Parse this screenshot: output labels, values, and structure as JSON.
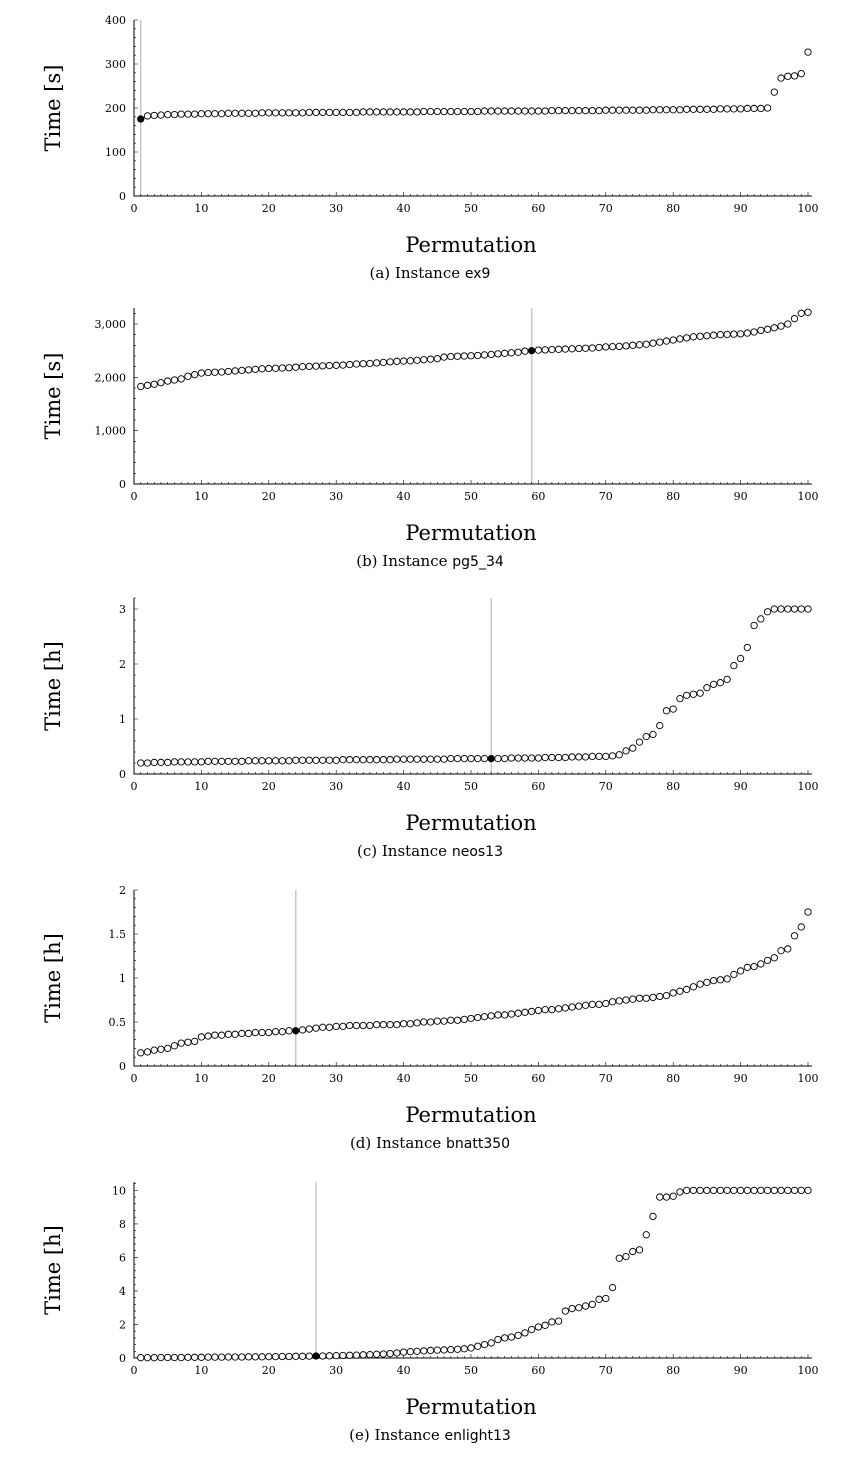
{
  "chart_data": [
    {
      "type": "scatter",
      "xlabel": "Permutation",
      "ylabel": "Time [s]",
      "caption_prefix": "(a) Instance",
      "caption_instance": "ex9",
      "xlim": [
        0,
        100
      ],
      "ylim": [
        0,
        400
      ],
      "xticks": [
        0,
        10,
        20,
        30,
        40,
        50,
        60,
        70,
        80,
        90,
        100
      ],
      "yticks": [
        0,
        100,
        200,
        300,
        400
      ],
      "ytick_labels": [
        "0",
        "100",
        "200",
        "300",
        "400"
      ],
      "highlight_x": 1,
      "x": [
        1,
        2,
        3,
        4,
        5,
        6,
        7,
        8,
        9,
        10,
        11,
        12,
        13,
        14,
        15,
        16,
        17,
        18,
        19,
        20,
        21,
        22,
        23,
        24,
        25,
        26,
        27,
        28,
        29,
        30,
        31,
        32,
        33,
        34,
        35,
        36,
        37,
        38,
        39,
        40,
        41,
        42,
        43,
        44,
        45,
        46,
        47,
        48,
        49,
        50,
        51,
        52,
        53,
        54,
        55,
        56,
        57,
        58,
        59,
        60,
        61,
        62,
        63,
        64,
        65,
        66,
        67,
        68,
        69,
        70,
        71,
        72,
        73,
        74,
        75,
        76,
        77,
        78,
        79,
        80,
        81,
        82,
        83,
        84,
        85,
        86,
        87,
        88,
        89,
        90,
        91,
        92,
        93,
        94,
        95,
        96,
        97,
        98,
        99,
        100
      ],
      "y": [
        175,
        182,
        183,
        184,
        185,
        185,
        186,
        186,
        186,
        187,
        187,
        187,
        187,
        188,
        188,
        188,
        188,
        188,
        189,
        189,
        189,
        189,
        189,
        189,
        189,
        190,
        190,
        190,
        190,
        190,
        190,
        190,
        190,
        191,
        191,
        191,
        191,
        191,
        191,
        191,
        191,
        191,
        192,
        192,
        192,
        192,
        192,
        192,
        192,
        192,
        192,
        193,
        193,
        193,
        193,
        193,
        193,
        193,
        193,
        193,
        193,
        194,
        194,
        194,
        194,
        194,
        194,
        194,
        194,
        195,
        195,
        195,
        195,
        195,
        195,
        195,
        196,
        196,
        196,
        196,
        196,
        197,
        197,
        197,
        197,
        197,
        198,
        198,
        198,
        198,
        199,
        199,
        199,
        200,
        236,
        268,
        272,
        273,
        278,
        327
      ]
    },
    {
      "type": "scatter",
      "xlabel": "Permutation",
      "ylabel": "Time [s]",
      "caption_prefix": "(b) Instance",
      "caption_instance": "pg5_34",
      "xlim": [
        0,
        100
      ],
      "ylim": [
        0,
        3300
      ],
      "xticks": [
        0,
        10,
        20,
        30,
        40,
        50,
        60,
        70,
        80,
        90,
        100
      ],
      "yticks": [
        0,
        1000,
        2000,
        3000
      ],
      "ytick_labels": [
        "0",
        "1,000",
        "2,000",
        "3,000"
      ],
      "highlight_x": 59,
      "x": [
        1,
        2,
        3,
        4,
        5,
        6,
        7,
        8,
        9,
        10,
        11,
        12,
        13,
        14,
        15,
        16,
        17,
        18,
        19,
        20,
        21,
        22,
        23,
        24,
        25,
        26,
        27,
        28,
        29,
        30,
        31,
        32,
        33,
        34,
        35,
        36,
        37,
        38,
        39,
        40,
        41,
        42,
        43,
        44,
        45,
        46,
        47,
        48,
        49,
        50,
        51,
        52,
        53,
        54,
        55,
        56,
        57,
        58,
        59,
        60,
        61,
        62,
        63,
        64,
        65,
        66,
        67,
        68,
        69,
        70,
        71,
        72,
        73,
        74,
        75,
        76,
        77,
        78,
        79,
        80,
        81,
        82,
        83,
        84,
        85,
        86,
        87,
        88,
        89,
        90,
        91,
        92,
        93,
        94,
        95,
        96,
        97,
        98,
        99,
        100
      ],
      "y": [
        1830,
        1850,
        1870,
        1900,
        1930,
        1950,
        1970,
        2020,
        2050,
        2080,
        2090,
        2095,
        2100,
        2110,
        2120,
        2130,
        2140,
        2150,
        2160,
        2165,
        2170,
        2175,
        2180,
        2190,
        2200,
        2205,
        2210,
        2215,
        2220,
        2225,
        2230,
        2240,
        2250,
        2255,
        2260,
        2270,
        2280,
        2290,
        2300,
        2305,
        2310,
        2320,
        2330,
        2340,
        2350,
        2380,
        2390,
        2395,
        2400,
        2405,
        2410,
        2420,
        2430,
        2440,
        2450,
        2460,
        2470,
        2490,
        2500,
        2510,
        2515,
        2520,
        2525,
        2530,
        2535,
        2540,
        2545,
        2550,
        2560,
        2570,
        2575,
        2580,
        2590,
        2600,
        2610,
        2620,
        2640,
        2660,
        2680,
        2700,
        2720,
        2740,
        2760,
        2770,
        2780,
        2790,
        2800,
        2805,
        2810,
        2815,
        2830,
        2850,
        2880,
        2900,
        2930,
        2960,
        3000,
        3100,
        3200,
        3220
      ]
    },
    {
      "type": "scatter",
      "xlabel": "Permutation",
      "ylabel": "Time [h]",
      "caption_prefix": "(c) Instance",
      "caption_instance": "neos13",
      "xlim": [
        0,
        100
      ],
      "ylim": [
        0,
        3.2
      ],
      "xticks": [
        0,
        10,
        20,
        30,
        40,
        50,
        60,
        70,
        80,
        90,
        100
      ],
      "yticks": [
        0,
        1,
        2,
        3
      ],
      "ytick_labels": [
        "0",
        "1",
        "2",
        "3"
      ],
      "highlight_x": 53,
      "x": [
        1,
        2,
        3,
        4,
        5,
        6,
        7,
        8,
        9,
        10,
        11,
        12,
        13,
        14,
        15,
        16,
        17,
        18,
        19,
        20,
        21,
        22,
        23,
        24,
        25,
        26,
        27,
        28,
        29,
        30,
        31,
        32,
        33,
        34,
        35,
        36,
        37,
        38,
        39,
        40,
        41,
        42,
        43,
        44,
        45,
        46,
        47,
        48,
        49,
        50,
        51,
        52,
        53,
        54,
        55,
        56,
        57,
        58,
        59,
        60,
        61,
        62,
        63,
        64,
        65,
        66,
        67,
        68,
        69,
        70,
        71,
        72,
        73,
        74,
        75,
        76,
        77,
        78,
        79,
        80,
        81,
        82,
        83,
        84,
        85,
        86,
        87,
        88,
        89,
        90,
        91,
        92,
        93,
        94,
        95,
        96,
        97,
        98,
        99,
        100
      ],
      "y": [
        0.2,
        0.2,
        0.21,
        0.21,
        0.21,
        0.22,
        0.22,
        0.22,
        0.22,
        0.22,
        0.23,
        0.23,
        0.23,
        0.23,
        0.23,
        0.23,
        0.24,
        0.24,
        0.24,
        0.24,
        0.24,
        0.24,
        0.24,
        0.25,
        0.25,
        0.25,
        0.25,
        0.25,
        0.25,
        0.25,
        0.26,
        0.26,
        0.26,
        0.26,
        0.26,
        0.26,
        0.26,
        0.26,
        0.27,
        0.27,
        0.27,
        0.27,
        0.27,
        0.27,
        0.27,
        0.27,
        0.28,
        0.28,
        0.28,
        0.28,
        0.28,
        0.28,
        0.28,
        0.28,
        0.28,
        0.29,
        0.29,
        0.29,
        0.29,
        0.29,
        0.3,
        0.3,
        0.3,
        0.3,
        0.31,
        0.31,
        0.31,
        0.32,
        0.32,
        0.32,
        0.33,
        0.35,
        0.42,
        0.47,
        0.58,
        0.68,
        0.72,
        0.88,
        1.15,
        1.18,
        1.37,
        1.43,
        1.45,
        1.47,
        1.57,
        1.63,
        1.66,
        1.72,
        1.97,
        2.1,
        2.3,
        2.7,
        2.82,
        2.95,
        3.0,
        3.0,
        3.0,
        3.0,
        3.0,
        3.0
      ]
    },
    {
      "type": "scatter",
      "xlabel": "Permutation",
      "ylabel": "Time [h]",
      "caption_prefix": "(d) Instance",
      "caption_instance": "bnatt350",
      "xlim": [
        0,
        100
      ],
      "ylim": [
        0,
        2
      ],
      "xticks": [
        0,
        10,
        20,
        30,
        40,
        50,
        60,
        70,
        80,
        90,
        100
      ],
      "yticks": [
        0,
        0.5,
        1,
        1.5,
        2
      ],
      "ytick_labels": [
        "0",
        "0.5",
        "1",
        "1.5",
        "2"
      ],
      "highlight_x": 24,
      "x": [
        1,
        2,
        3,
        4,
        5,
        6,
        7,
        8,
        9,
        10,
        11,
        12,
        13,
        14,
        15,
        16,
        17,
        18,
        19,
        20,
        21,
        22,
        23,
        24,
        25,
        26,
        27,
        28,
        29,
        30,
        31,
        32,
        33,
        34,
        35,
        36,
        37,
        38,
        39,
        40,
        41,
        42,
        43,
        44,
        45,
        46,
        47,
        48,
        49,
        50,
        51,
        52,
        53,
        54,
        55,
        56,
        57,
        58,
        59,
        60,
        61,
        62,
        63,
        64,
        65,
        66,
        67,
        68,
        69,
        70,
        71,
        72,
        73,
        74,
        75,
        76,
        77,
        78,
        79,
        80,
        81,
        82,
        83,
        84,
        85,
        86,
        87,
        88,
        89,
        90,
        91,
        92,
        93,
        94,
        95,
        96,
        97,
        98,
        99,
        100
      ],
      "y": [
        0.15,
        0.16,
        0.18,
        0.19,
        0.2,
        0.23,
        0.26,
        0.27,
        0.28,
        0.33,
        0.34,
        0.35,
        0.35,
        0.36,
        0.36,
        0.37,
        0.37,
        0.38,
        0.38,
        0.38,
        0.39,
        0.39,
        0.4,
        0.4,
        0.41,
        0.42,
        0.43,
        0.44,
        0.44,
        0.45,
        0.45,
        0.46,
        0.46,
        0.46,
        0.46,
        0.47,
        0.47,
        0.47,
        0.47,
        0.48,
        0.48,
        0.49,
        0.5,
        0.5,
        0.51,
        0.51,
        0.52,
        0.52,
        0.53,
        0.54,
        0.55,
        0.56,
        0.57,
        0.58,
        0.58,
        0.59,
        0.6,
        0.61,
        0.62,
        0.63,
        0.64,
        0.64,
        0.65,
        0.66,
        0.67,
        0.68,
        0.69,
        0.7,
        0.7,
        0.71,
        0.73,
        0.74,
        0.75,
        0.76,
        0.77,
        0.77,
        0.78,
        0.79,
        0.8,
        0.83,
        0.85,
        0.87,
        0.9,
        0.93,
        0.95,
        0.97,
        0.98,
        0.99,
        1.04,
        1.08,
        1.12,
        1.13,
        1.16,
        1.2,
        1.23,
        1.31,
        1.33,
        1.48,
        1.58,
        1.75
      ]
    },
    {
      "type": "scatter",
      "xlabel": "Permutation",
      "ylabel": "Time [h]",
      "caption_prefix": "(e) Instance",
      "caption_instance": "enlight13",
      "xlim": [
        0,
        100
      ],
      "ylim": [
        0,
        10.5
      ],
      "xticks": [
        0,
        10,
        20,
        30,
        40,
        50,
        60,
        70,
        80,
        90,
        100
      ],
      "yticks": [
        0,
        2,
        4,
        6,
        8,
        10
      ],
      "ytick_labels": [
        "0",
        "2",
        "4",
        "6",
        "8",
        "10"
      ],
      "highlight_x": 27,
      "x": [
        1,
        2,
        3,
        4,
        5,
        6,
        7,
        8,
        9,
        10,
        11,
        12,
        13,
        14,
        15,
        16,
        17,
        18,
        19,
        20,
        21,
        22,
        23,
        24,
        25,
        26,
        27,
        28,
        29,
        30,
        31,
        32,
        33,
        34,
        35,
        36,
        37,
        38,
        39,
        40,
        41,
        42,
        43,
        44,
        45,
        46,
        47,
        48,
        49,
        50,
        51,
        52,
        53,
        54,
        55,
        56,
        57,
        58,
        59,
        60,
        61,
        62,
        63,
        64,
        65,
        66,
        67,
        68,
        69,
        70,
        71,
        72,
        73,
        74,
        75,
        76,
        77,
        78,
        79,
        80,
        81,
        82,
        83,
        84,
        85,
        86,
        87,
        88,
        89,
        90,
        91,
        92,
        93,
        94,
        95,
        96,
        97,
        98,
        99,
        100
      ],
      "y": [
        0.02,
        0.02,
        0.02,
        0.03,
        0.03,
        0.03,
        0.03,
        0.04,
        0.04,
        0.04,
        0.05,
        0.05,
        0.05,
        0.06,
        0.06,
        0.06,
        0.07,
        0.07,
        0.07,
        0.08,
        0.08,
        0.09,
        0.09,
        0.1,
        0.1,
        0.11,
        0.12,
        0.12,
        0.13,
        0.14,
        0.15,
        0.16,
        0.17,
        0.19,
        0.2,
        0.22,
        0.24,
        0.26,
        0.3,
        0.35,
        0.38,
        0.4,
        0.42,
        0.45,
        0.47,
        0.48,
        0.5,
        0.52,
        0.55,
        0.6,
        0.7,
        0.8,
        0.9,
        1.1,
        1.2,
        1.25,
        1.35,
        1.5,
        1.7,
        1.85,
        1.95,
        2.15,
        2.2,
        2.8,
        2.95,
        3.0,
        3.1,
        3.2,
        3.5,
        3.55,
        4.2,
        5.95,
        6.05,
        6.35,
        6.45,
        7.35,
        8.45,
        9.6,
        9.6,
        9.65,
        9.9,
        10,
        10,
        10,
        10,
        10,
        10,
        10,
        10,
        10,
        10,
        10,
        10,
        10,
        10,
        10,
        10,
        10,
        10,
        10
      ]
    }
  ]
}
